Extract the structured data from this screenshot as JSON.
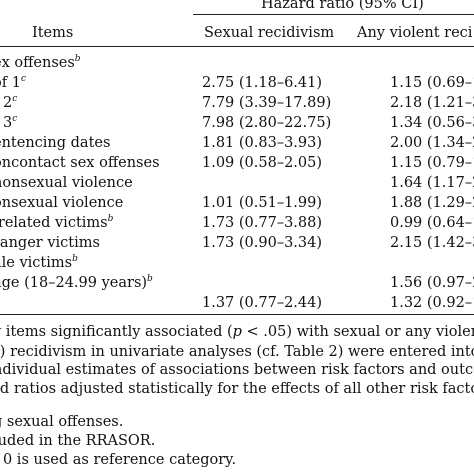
{
  "header": {
    "group_label": "Hazard ratio (95% CI)",
    "items_label": "Items",
    "col1_label": "Sexual recidivism",
    "col2_label": "Any violent reci"
  },
  "rows": [
    {
      "label": "ex offenses",
      "sup": "b",
      "c1": "",
      "c2": ""
    },
    {
      "label": "of 1",
      "sup": "c",
      "c1": "2.75 (1.18–6.41)",
      "c2": "1.15 (0.69–1"
    },
    {
      "label": "f 2",
      "sup": "c",
      "c1": "7.79 (3.39–17.89)",
      "c2": "2.18 (1.21–3"
    },
    {
      "label": "f 3",
      "sup": "c",
      "c1": "7.98 (2.80–22.75)",
      "c2": "1.34 (0.56–3"
    },
    {
      "label": "entencing dates",
      "sup": "",
      "c1": "1.81 (0.83–3.93)",
      "c2": "2.00 (1.34–2"
    },
    {
      "label": "oncontact sex offenses",
      "sup": "",
      "c1": "1.09 (0.58–2.05)",
      "c2": "1.15 (0.79–1"
    },
    {
      "label": "nonsexual violence",
      "sup": "",
      "c1": "",
      "c2": "1.64 (1.17–2"
    },
    {
      "label": "onsexual violence",
      "sup": "",
      "c1": "1.01 (0.51–1.99)",
      "c2": "1.88 (1.29–2"
    },
    {
      "label": "-related victims",
      "sup": "b",
      "c1": "1.73 (0.77–3.88)",
      "c2": "0.99 (0.64–1"
    },
    {
      "label": "ranger victims",
      "sup": "",
      "c1": "1.73 (0.90–3.34)",
      "c2": "2.15 (1.42–3"
    },
    {
      "label": "ale victims",
      "sup": "b",
      "c1": "",
      "c2": ""
    },
    {
      "label": "age (18–24.99 years)",
      "sup": "b",
      "c1": "",
      "c2": "1.56 (0.97–2"
    },
    {
      "label": "",
      "sup": "",
      "c1": "1.37 (0.77–2.44)",
      "c2": "1.32 (0.92–1"
    }
  ],
  "notes": {
    "line1_a": "y items significantly associated (",
    "line1_p": "p",
    "line1_b": " < .05) with sexual or any violen",
    "line2_a": "I",
    "line2_b": ") recidivism in univariate analyses (cf. Table 2) were entered into",
    "line3": "ndividual estimates of associations between risk factors and outco",
    "line4": "rd ratios adjusted statistically for the effects of all other risk factors",
    "line5": "g sexual offenses.",
    "line6": "luded in the RRASOR.",
    "line7": "f 0 is used as reference category."
  }
}
